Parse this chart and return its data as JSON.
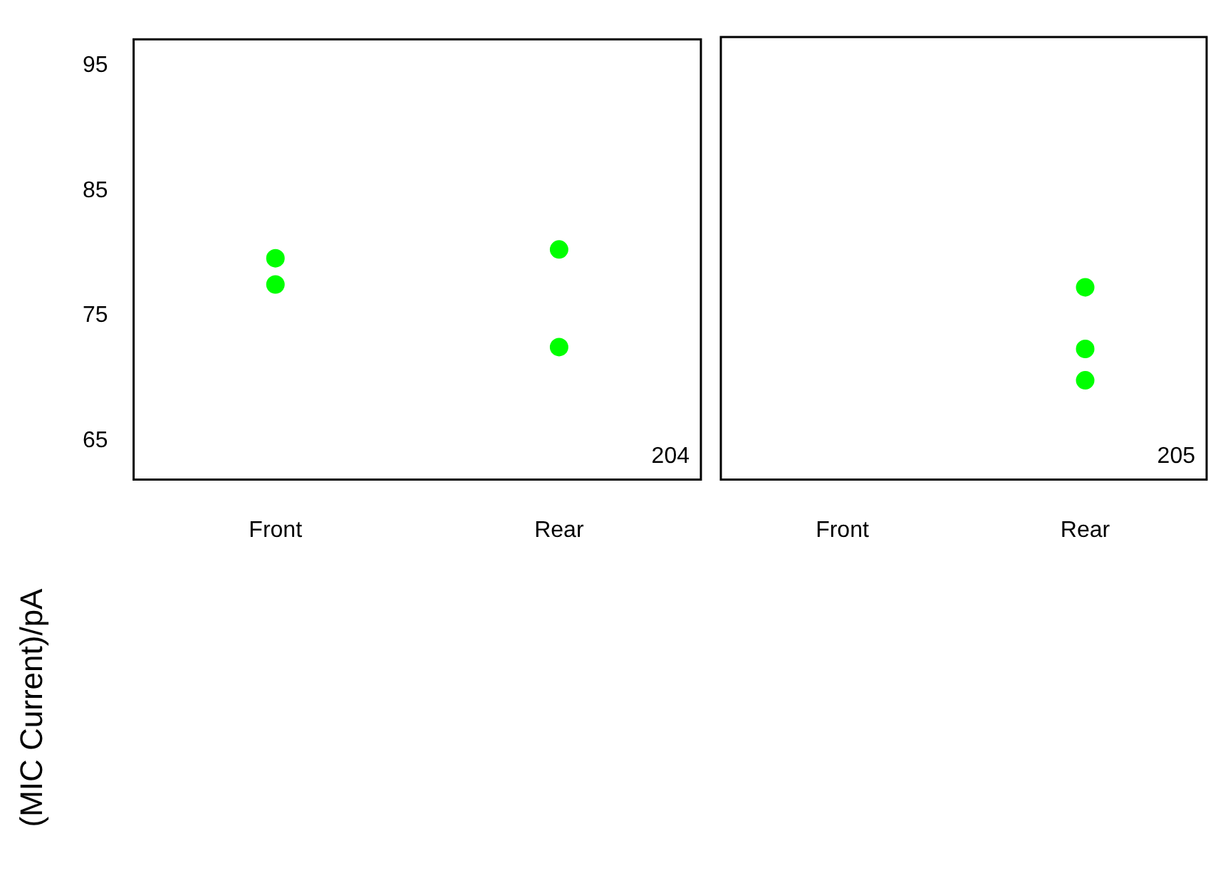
{
  "chart_data": [
    {
      "type": "scatter",
      "ylabel": "(MIC Current)/pA",
      "categories": [
        "Front",
        "Rear"
      ],
      "ylim": [
        61.9,
        97.1
      ],
      "yticks": [
        65,
        75,
        85,
        95
      ],
      "grid": false,
      "legend": false,
      "marker": "circle",
      "annotations": [
        "204"
      ],
      "series": [
        {
          "color": "#00ff00",
          "x": [
            "Front",
            "Front",
            "Rear",
            "Rear"
          ],
          "values": [
            79.6,
            77.5,
            80.3,
            72.5
          ]
        }
      ]
    },
    {
      "type": "scatter",
      "categories": [
        "Front",
        "Rear"
      ],
      "ylim": [
        61.9,
        97.1
      ],
      "yticks": [
        65,
        75,
        85,
        95
      ],
      "grid": false,
      "legend": false,
      "marker": "circle",
      "tick_labels": "x",
      "annotations": [
        "205"
      ],
      "series": [
        {
          "color": "#00ff00",
          "x": [
            "Rear",
            "Rear",
            "Rear"
          ],
          "values": [
            77.2,
            72.3,
            69.8
          ]
        }
      ]
    }
  ]
}
